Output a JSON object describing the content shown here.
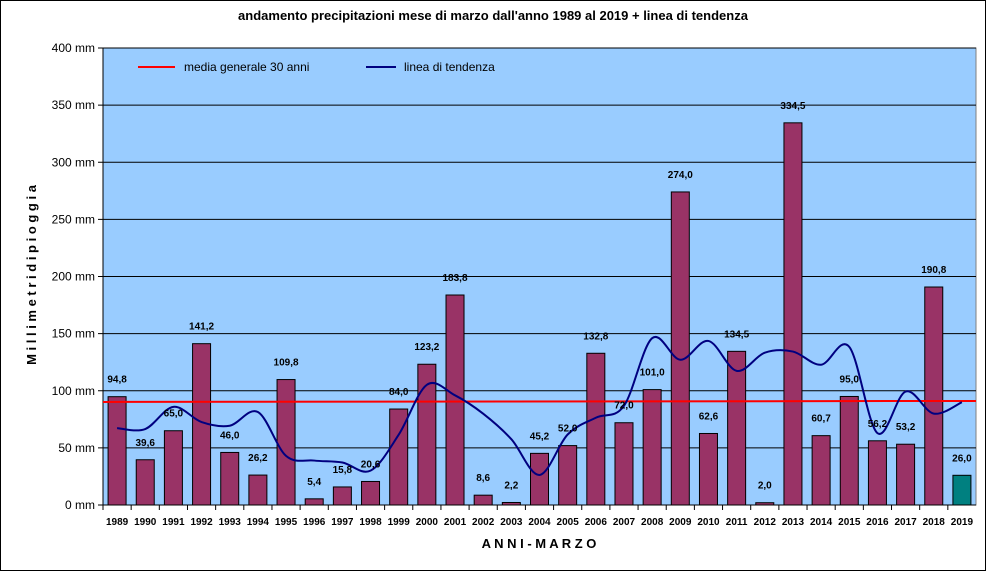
{
  "chart_data": {
    "type": "bar",
    "title": "andamento precipitazioni mese di marzo dall'anno 1989 al 2019 + linea di tendenza",
    "xlabel": "A N N I  -  M A R Z O",
    "ylabel": "M i l l i m e t r i   d i   p i o g g i a",
    "ylim": [
      0,
      400
    ],
    "yticks": [
      0,
      50,
      100,
      150,
      200,
      250,
      300,
      350,
      400
    ],
    "ytick_suffix": " mm",
    "grid": true,
    "legend_position": "top-left",
    "categories": [
      "1989",
      "1990",
      "1991",
      "1992",
      "1993",
      "1994",
      "1995",
      "1996",
      "1997",
      "1998",
      "1999",
      "2000",
      "2001",
      "2002",
      "2003",
      "2004",
      "2005",
      "2006",
      "2007",
      "2008",
      "2009",
      "2010",
      "2011",
      "2012",
      "2013",
      "2014",
      "2015",
      "2016",
      "2017",
      "2018",
      "2019"
    ],
    "values": [
      94.8,
      39.6,
      65.0,
      141.2,
      46.0,
      26.2,
      109.8,
      5.4,
      15.8,
      20.6,
      84.0,
      123.2,
      183.8,
      8.6,
      2.2,
      45.2,
      52.0,
      132.8,
      72.0,
      101.0,
      274.0,
      62.6,
      134.5,
      2.0,
      334.5,
      60.7,
      95.0,
      56.2,
      53.2,
      190.8,
      26.0
    ],
    "value_labels": [
      "94,8",
      "39,6",
      "65,0",
      "141,2",
      "46,0",
      "26,2",
      "109,8",
      "5,4",
      "15,8",
      "20,6",
      "84,0",
      "123,2",
      "183,8",
      "8,6",
      "2,2",
      "45,2",
      "52,0",
      "132,8",
      "72,0",
      "101,0",
      "274,0",
      "62,6",
      "134,5",
      "2,0",
      "334,5",
      "60,7",
      "95,0",
      "56,2",
      "53,2",
      "190,8",
      "26,0"
    ],
    "highlight_index": 30,
    "average": {
      "name": "media generale 30 anni",
      "value": 90.2
    },
    "trend": {
      "name": "linea di tendenza",
      "values": [
        67.3,
        66.5,
        85.9,
        72.6,
        69.4,
        81.4,
        43.0,
        38.9,
        37.2,
        30.1,
        61.5,
        105.2,
        96.0,
        79.9,
        57.6,
        26.3,
        61.7,
        76.4,
        86.8,
        146.0,
        127.1,
        143.6,
        117.4,
        133.3,
        134.3,
        122.8,
        138.4,
        62.9,
        99.3,
        80.0,
        90.0
      ]
    },
    "colors": {
      "bar": "#993366",
      "bar_highlight": "#008080",
      "plot_background": "#99CCFF",
      "average_line": "#FF0000",
      "trend_line": "#000080"
    }
  }
}
